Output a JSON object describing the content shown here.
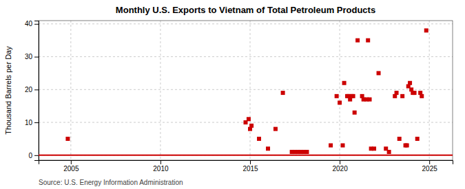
{
  "chart_data": {
    "type": "scatter",
    "title": "Monthly U.S. Exports to Vietnam of Total Petroleum Products",
    "ylabel": "Thousand Barrels per Day",
    "annotations": [
      "Source: U.S. Energy Information Administration"
    ],
    "xlim": [
      2003.2,
      2026.3
    ],
    "ylim": [
      -1.5,
      41
    ],
    "xticks": [
      2005,
      2010,
      2015,
      2020,
      2025
    ],
    "yticks": [
      0,
      10,
      20,
      30,
      40
    ],
    "grid": true,
    "series": [
      {
        "type": "line",
        "color": "#cc0000",
        "x": [
          2003.2,
          2026.3
        ],
        "values": [
          0,
          0
        ]
      },
      {
        "type": "scatter",
        "color": "#cc0000",
        "marker": "square",
        "x": [
          2004.83,
          2014.75,
          2014.92,
          2015.0,
          2015.08,
          2015.5,
          2016.0,
          2016.42,
          2016.83,
          2017.33,
          2017.5,
          2017.67,
          2017.83,
          2018.0,
          2018.17,
          2019.5,
          2019.83,
          2020.0,
          2020.17,
          2020.25,
          2020.42,
          2020.5,
          2020.58,
          2020.67,
          2020.75,
          2020.83,
          2021.0,
          2021.25,
          2021.33,
          2021.5,
          2021.58,
          2021.67,
          2021.75,
          2021.92,
          2022.17,
          2022.58,
          2022.75,
          2023.08,
          2023.17,
          2023.33,
          2023.5,
          2023.67,
          2023.75,
          2023.83,
          2023.92,
          2024.0,
          2024.08,
          2024.17,
          2024.33,
          2024.5,
          2024.58,
          2024.83
        ],
        "values": [
          5,
          10,
          11,
          8,
          9,
          5,
          2,
          8,
          19,
          1,
          1,
          1,
          1,
          1,
          1,
          3,
          18,
          16,
          3,
          22,
          18,
          18,
          17,
          18,
          18,
          13,
          35,
          18,
          17,
          17,
          35,
          17,
          2,
          2,
          25,
          2,
          1,
          18,
          19,
          5,
          18,
          3,
          3,
          21,
          22,
          20,
          19,
          19,
          5,
          19,
          18,
          38
        ]
      }
    ]
  }
}
